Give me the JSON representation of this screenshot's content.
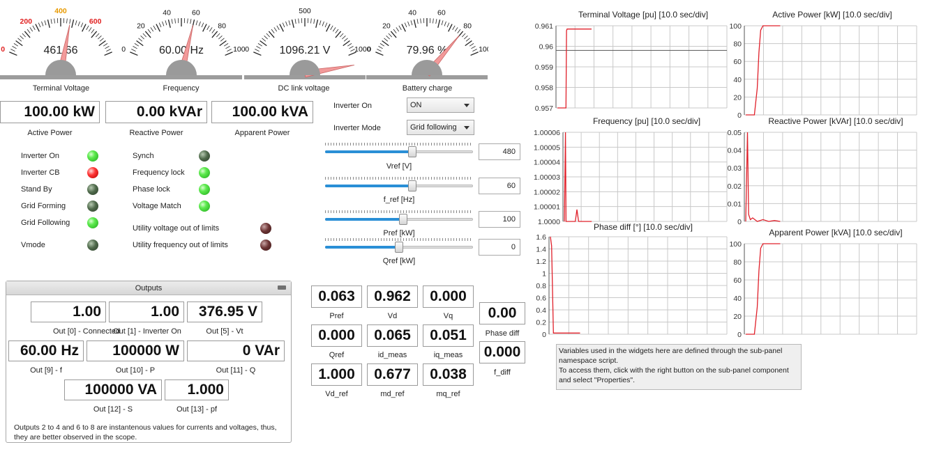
{
  "gauges": [
    {
      "id": "terminal-voltage",
      "min": 0,
      "max": 800,
      "ticks": [
        {
          "v": 0,
          "t": "0",
          "c": "#e02020"
        },
        {
          "v": 200,
          "t": "200",
          "c": "#e02020"
        },
        {
          "v": 400,
          "t": "400",
          "c": "#e89a00"
        },
        {
          "v": 600,
          "t": "600",
          "c": "#e02020"
        }
      ],
      "value": 461.66,
      "readout": "461.66",
      "label": "Terminal Voltage"
    },
    {
      "id": "frequency",
      "min": 0,
      "max": 100,
      "ticks": [
        {
          "v": 0,
          "t": "0",
          "c": "#111"
        },
        {
          "v": 20,
          "t": "20",
          "c": "#111"
        },
        {
          "v": 40,
          "t": "40",
          "c": "#111"
        },
        {
          "v": 60,
          "t": "60",
          "c": "#111"
        },
        {
          "v": 80,
          "t": "80",
          "c": "#111"
        },
        {
          "v": 100,
          "t": "100",
          "c": "#111"
        }
      ],
      "value": 60.0,
      "readout": "60.00 Hz",
      "label": "Frequency"
    },
    {
      "id": "dc-link-voltage",
      "min": 0,
      "max": 1000,
      "ticks": [
        {
          "v": 0,
          "t": "0",
          "c": "#111"
        },
        {
          "v": 500,
          "t": "500",
          "c": "#111"
        },
        {
          "v": 1000,
          "t": "1000",
          "c": "#111"
        }
      ],
      "value": 1096.21,
      "readout": "1096.21 V",
      "label": "DC link voltage"
    },
    {
      "id": "battery-charge",
      "min": 0,
      "max": 100,
      "ticks": [
        {
          "v": 0,
          "t": "0",
          "c": "#111"
        },
        {
          "v": 20,
          "t": "20",
          "c": "#111"
        },
        {
          "v": 40,
          "t": "40",
          "c": "#111"
        },
        {
          "v": 60,
          "t": "60",
          "c": "#111"
        },
        {
          "v": 80,
          "t": "80",
          "c": "#111"
        },
        {
          "v": 100,
          "t": "100",
          "c": "#111"
        }
      ],
      "value": 79.96,
      "readout": "79.96 %",
      "label": "Battery charge"
    }
  ],
  "power": {
    "active": {
      "value": "100.00 kW",
      "label": "Active Power"
    },
    "reactive": {
      "value": "0.00 kVAr",
      "label": "Reactive Power"
    },
    "apparent": {
      "value": "100.00 kVA",
      "label": "Apparent Power"
    }
  },
  "leds_left": [
    {
      "label": "Inverter On",
      "state": "on-green"
    },
    {
      "label": "Inverter CB",
      "state": "on-red"
    },
    {
      "label": "Stand By",
      "state": "off-green"
    },
    {
      "label": "Grid Forming",
      "state": "off-green"
    },
    {
      "label": "Grid Following",
      "state": "on-green"
    },
    {
      "label": "Vmode",
      "state": "off-green"
    }
  ],
  "leds_mid": [
    {
      "label": "Synch",
      "state": "off-green"
    },
    {
      "label": "Frequency lock",
      "state": "on-green"
    },
    {
      "label": "Phase lock",
      "state": "on-green"
    },
    {
      "label": "Voltage Match",
      "state": "on-green"
    },
    {
      "label": "Utility voltage out of limits",
      "state": "off-red"
    },
    {
      "label": "Utility frequency out of limits",
      "state": "off-red"
    }
  ],
  "controls": {
    "inverter_on": {
      "label": "Inverter On",
      "value": "ON"
    },
    "inverter_mode": {
      "label": "Inverter Mode",
      "value": "Grid following"
    }
  },
  "sliders": [
    {
      "label": "Vref [V]",
      "value": "480",
      "fraction": 0.59
    },
    {
      "label": "f_ref [Hz]",
      "value": "60",
      "fraction": 0.59
    },
    {
      "label": "Pref [kW]",
      "value": "100",
      "fraction": 0.53
    },
    {
      "label": "Qref [kW]",
      "value": "0",
      "fraction": 0.5
    }
  ],
  "outputs": {
    "title": "Outputs",
    "items": [
      {
        "value": "1.00",
        "label": "Out [0] - Connected"
      },
      {
        "value": "1.00",
        "label": "Out [1] - Inverter On"
      },
      {
        "value": "376.95 V",
        "label": "Out [5] - Vt"
      },
      {
        "value": "60.00 Hz",
        "label": "Out [9] - f"
      },
      {
        "value": "100000 W",
        "label": "Out [10] - P"
      },
      {
        "value": "0 VAr",
        "label": "Out [11] - Q"
      },
      {
        "value": "100000 VA",
        "label": "Out [12] - S"
      },
      {
        "value": "1.000",
        "label": "Out [13] - pf"
      }
    ],
    "note": "Outputs 2 to 4 and 6 to 8 are instantenous values for currents and voltages, thus, they are better observed in the scope."
  },
  "measures": [
    {
      "value": "0.063",
      "label": "Pref"
    },
    {
      "value": "0.962",
      "label": "Vd"
    },
    {
      "value": "0.000",
      "label": "Vq"
    },
    {
      "value": "0.000",
      "label": "Qref"
    },
    {
      "value": "0.065",
      "label": "id_meas"
    },
    {
      "value": "0.051",
      "label": "iq_meas"
    },
    {
      "value": "1.000",
      "label": "Vd_ref"
    },
    {
      "value": "0.677",
      "label": "md_ref"
    },
    {
      "value": "0.038",
      "label": "mq_ref"
    }
  ],
  "diff": {
    "phase": {
      "value": "0.00",
      "label": "Phase diff"
    },
    "freq": {
      "value": "0.000",
      "label": "f_diff"
    }
  },
  "info_note": "Variables used in the widgets here are defined through the sub-panel namespace script.\nTo access them, click with the right button on the sub-panel component and select \"Properties\".",
  "scope_colors": {
    "trace": "#e0202a",
    "grid": "#c8c8c8"
  },
  "chart_data": [
    {
      "type": "line",
      "title": "Terminal Voltage [pu] [10.0 sec/div]",
      "yticks": [
        "0.961",
        "0.96",
        "0.959",
        "0.958",
        "0.957"
      ],
      "ylim": [
        0.9565,
        0.9615
      ],
      "ref_line": 0.96,
      "series": [
        {
          "x": [
            0,
            1.5,
            1.6,
            1.7,
            2,
            3,
            5,
            6
          ],
          "y": [
            0.9565,
            0.9565,
            0.9612,
            0.9613,
            0.9613,
            0.9613,
            0.9613,
            0.9613
          ]
        }
      ],
      "xmax": 30
    },
    {
      "type": "line",
      "title": "Active Power [kW] [10.0 sec/div]",
      "yticks": [
        "100",
        "80",
        "60",
        "40",
        "20",
        "0"
      ],
      "ylim": [
        0,
        100
      ],
      "series": [
        {
          "x": [
            0,
            1.5,
            2,
            2.3,
            2.6,
            3,
            5,
            6
          ],
          "y": [
            0,
            0,
            30,
            70,
            95,
            100,
            100,
            100
          ]
        }
      ],
      "xmax": 30
    },
    {
      "type": "line",
      "title": "Frequency [pu] [10.0 sec/div]",
      "yticks": [
        "1.00006",
        "1.00005",
        "1.00004",
        "1.00003",
        "1.00002",
        "1.00001",
        "1.0000"
      ],
      "ylim": [
        1.0,
        1.00006
      ],
      "series": [
        {
          "x": [
            0,
            0.2,
            0.3,
            0.5,
            1,
            1.5,
            2,
            2.3,
            2.6,
            3,
            4,
            5
          ],
          "y": [
            1.0,
            1.00006,
            1.0,
            1.0,
            1.0,
            1.0,
            1.0,
            1.000008,
            1.0,
            1.0,
            1.0,
            1.0
          ]
        }
      ],
      "xmax": 30
    },
    {
      "type": "line",
      "title": "Reactive Power [kVAr] [10.0 sec/div]",
      "yticks": [
        "0.05",
        "0.04",
        "0.03",
        "0.02",
        "0.01",
        "0"
      ],
      "ylim": [
        0,
        0.05
      ],
      "series": [
        {
          "x": [
            0,
            0.3,
            0.5,
            0.8,
            1.2,
            2,
            3,
            4,
            5,
            6
          ],
          "y": [
            0,
            0.05,
            0.004,
            0.001,
            0.002,
            0.0,
            0.001,
            0.0,
            0.0005,
            0
          ]
        }
      ],
      "xmax": 30
    },
    {
      "type": "line",
      "title": "Phase diff [°] [10.0 sec/div]",
      "yticks": [
        "1.6",
        "1.4",
        "1.2",
        "1",
        "0.8",
        "0.6",
        "0.4",
        "0.2",
        "0"
      ],
      "ylim": [
        0,
        1.6
      ],
      "series": [
        {
          "x": [
            0,
            0.2,
            0.5,
            1,
            3,
            5
          ],
          "y": [
            1.6,
            1.45,
            0.02,
            0.02,
            0.02,
            0.02
          ]
        }
      ],
      "xmax": 30
    },
    {
      "type": "line",
      "title": "Apparent Power [kVA] [10.0 sec/div]",
      "yticks": [
        "100",
        "80",
        "60",
        "40",
        "20",
        "0"
      ],
      "ylim": [
        0,
        100
      ],
      "series": [
        {
          "x": [
            0,
            1.5,
            2,
            2.3,
            2.6,
            3,
            5,
            6
          ],
          "y": [
            0,
            0,
            30,
            70,
            95,
            100,
            100,
            100
          ]
        }
      ],
      "xmax": 30
    }
  ]
}
